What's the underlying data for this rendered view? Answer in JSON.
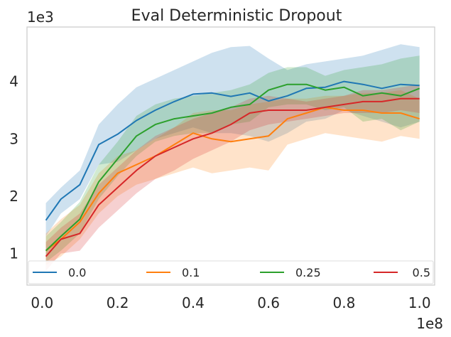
{
  "chart_data": {
    "type": "line",
    "title": "Eval Deterministic Dropout",
    "x_offset_label": "1e8",
    "y_offset_label": "1e3",
    "xlim": [
      -0.04,
      1.04
    ],
    "ylim": [
      0.45,
      4.95
    ],
    "x_ticks": [
      0.0,
      0.2,
      0.4,
      0.6,
      0.8,
      1.0
    ],
    "x_tick_labels": [
      "0.0",
      "0.2",
      "0.4",
      "0.6",
      "0.8",
      "1.0"
    ],
    "y_ticks": [
      1,
      2,
      3,
      4
    ],
    "y_tick_labels": [
      "1",
      "2",
      "3",
      "4"
    ],
    "grid": false,
    "legend_position": "bottom",
    "series": [
      {
        "name": "0.0",
        "color": "#1f77b4",
        "x": [
          0.01,
          0.05,
          0.1,
          0.15,
          0.2,
          0.25,
          0.3,
          0.35,
          0.4,
          0.45,
          0.5,
          0.55,
          0.6,
          0.65,
          0.7,
          0.75,
          0.8,
          0.85,
          0.9,
          0.95,
          1.0
        ],
        "y": [
          1.58,
          1.95,
          2.2,
          2.9,
          3.08,
          3.32,
          3.5,
          3.65,
          3.78,
          3.8,
          3.74,
          3.8,
          3.66,
          3.75,
          3.88,
          3.9,
          4.0,
          3.95,
          3.88,
          3.95,
          3.93
        ],
        "upper": [
          1.88,
          2.15,
          2.45,
          3.25,
          3.6,
          3.9,
          4.05,
          4.2,
          4.35,
          4.5,
          4.6,
          4.62,
          4.4,
          4.2,
          4.3,
          4.35,
          4.4,
          4.45,
          4.55,
          4.65,
          4.6
        ],
        "lower": [
          1.3,
          1.7,
          1.95,
          2.55,
          2.6,
          2.8,
          3.0,
          3.1,
          3.2,
          3.1,
          3.1,
          3.05,
          2.95,
          3.1,
          3.3,
          3.35,
          3.5,
          3.4,
          3.3,
          3.2,
          3.3
        ]
      },
      {
        "name": "0.1",
        "color": "#ff7f0e",
        "x": [
          0.01,
          0.05,
          0.1,
          0.15,
          0.2,
          0.25,
          0.3,
          0.35,
          0.4,
          0.45,
          0.5,
          0.55,
          0.6,
          0.65,
          0.7,
          0.75,
          0.8,
          0.85,
          0.9,
          0.95,
          1.0
        ],
        "y": [
          1.05,
          1.25,
          1.55,
          2.05,
          2.4,
          2.55,
          2.7,
          2.9,
          3.1,
          3.0,
          2.95,
          3.0,
          3.05,
          3.35,
          3.45,
          3.55,
          3.5,
          3.5,
          3.45,
          3.45,
          3.35
        ],
        "upper": [
          1.35,
          1.6,
          1.85,
          2.4,
          2.7,
          2.8,
          3.0,
          3.2,
          3.45,
          3.5,
          3.5,
          3.6,
          3.65,
          3.7,
          3.7,
          3.75,
          3.75,
          3.8,
          3.8,
          3.85,
          3.7
        ],
        "lower": [
          0.8,
          0.95,
          1.25,
          1.7,
          2.0,
          2.2,
          2.3,
          2.4,
          2.5,
          2.4,
          2.45,
          2.5,
          2.45,
          2.9,
          3.0,
          3.1,
          3.05,
          3.0,
          2.95,
          3.05,
          3.0
        ]
      },
      {
        "name": "0.25",
        "color": "#2ca02c",
        "x": [
          0.01,
          0.05,
          0.1,
          0.15,
          0.2,
          0.25,
          0.3,
          0.35,
          0.4,
          0.45,
          0.5,
          0.55,
          0.6,
          0.65,
          0.7,
          0.75,
          0.8,
          0.85,
          0.9,
          0.95,
          1.0
        ],
        "y": [
          1.05,
          1.3,
          1.6,
          2.25,
          2.65,
          3.05,
          3.25,
          3.35,
          3.4,
          3.45,
          3.55,
          3.6,
          3.85,
          3.95,
          3.95,
          3.85,
          3.9,
          3.75,
          3.8,
          3.75,
          3.88
        ],
        "upper": [
          1.3,
          1.55,
          1.9,
          2.55,
          2.95,
          3.4,
          3.6,
          3.7,
          3.75,
          3.8,
          3.85,
          3.95,
          4.15,
          4.25,
          4.25,
          4.1,
          4.2,
          4.25,
          4.3,
          4.4,
          4.45
        ],
        "lower": [
          0.85,
          1.05,
          1.35,
          1.95,
          2.35,
          2.7,
          2.95,
          3.05,
          3.1,
          3.1,
          3.25,
          3.3,
          3.55,
          3.6,
          3.6,
          3.5,
          3.55,
          3.3,
          3.35,
          3.15,
          3.3
        ]
      },
      {
        "name": "0.5",
        "color": "#d62728",
        "x": [
          0.01,
          0.05,
          0.1,
          0.15,
          0.2,
          0.25,
          0.3,
          0.35,
          0.4,
          0.45,
          0.5,
          0.55,
          0.6,
          0.65,
          0.7,
          0.75,
          0.8,
          0.85,
          0.9,
          0.95,
          1.0
        ],
        "y": [
          0.95,
          1.25,
          1.35,
          1.85,
          2.15,
          2.45,
          2.7,
          2.85,
          3.0,
          3.1,
          3.25,
          3.45,
          3.5,
          3.5,
          3.5,
          3.55,
          3.6,
          3.65,
          3.65,
          3.7,
          3.7
        ],
        "upper": [
          1.2,
          1.45,
          1.7,
          2.2,
          2.5,
          2.8,
          3.05,
          3.2,
          3.35,
          3.45,
          3.55,
          3.7,
          3.75,
          3.7,
          3.65,
          3.7,
          3.75,
          3.85,
          3.85,
          3.9,
          3.95
        ],
        "lower": [
          0.7,
          1.0,
          1.05,
          1.45,
          1.75,
          2.05,
          2.3,
          2.45,
          2.65,
          2.8,
          2.95,
          3.15,
          3.25,
          3.3,
          3.35,
          3.4,
          3.45,
          3.45,
          3.45,
          3.5,
          3.45
        ]
      }
    ]
  }
}
